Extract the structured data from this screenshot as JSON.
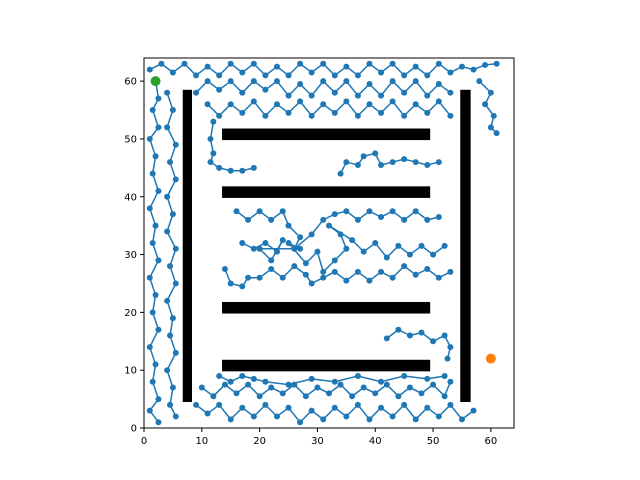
{
  "chart_data": {
    "type": "scatter",
    "title": "",
    "xlabel": "",
    "ylabel": "",
    "xlim": [
      0,
      64
    ],
    "ylim": [
      0,
      64
    ],
    "grid": false,
    "xticks": [
      0,
      10,
      20,
      30,
      40,
      50,
      60
    ],
    "yticks": [
      0,
      10,
      20,
      30,
      40,
      50,
      60
    ],
    "tick_labels_x": [
      "0",
      "10",
      "20",
      "30",
      "40",
      "50",
      "60"
    ],
    "tick_labels_y": [
      "0",
      "10",
      "20",
      "30",
      "40",
      "50",
      "60"
    ],
    "colors": {
      "tree": "#1f77b4",
      "start": "#2ca02c",
      "goal": "#ff7f0e",
      "obstacle": "#000000"
    },
    "obstacles": [
      {
        "x": [
          6.7,
          8.3
        ],
        "y": [
          4.5,
          58.5
        ]
      },
      {
        "x": [
          54.7,
          56.5
        ],
        "y": [
          4.5,
          58.5
        ]
      },
      {
        "x": [
          13.5,
          49.5
        ],
        "y": [
          49.8,
          51.8
        ]
      },
      {
        "x": [
          13.5,
          49.5
        ],
        "y": [
          39.8,
          41.8
        ]
      },
      {
        "x": [
          13.5,
          49.5
        ],
        "y": [
          19.8,
          21.8
        ]
      },
      {
        "x": [
          13.5,
          49.5
        ],
        "y": [
          9.8,
          11.8
        ]
      }
    ],
    "start": {
      "x": 2,
      "y": 60
    },
    "goal": {
      "x": 60,
      "y": 12
    },
    "series": [
      {
        "values": [
          [
            1,
            62
          ],
          [
            3,
            63
          ],
          [
            5,
            61.5
          ],
          [
            7,
            63
          ],
          [
            9,
            61
          ],
          [
            11,
            62.5
          ],
          [
            13,
            61
          ],
          [
            15,
            63
          ],
          [
            17,
            61.5
          ],
          [
            19,
            63
          ],
          [
            21,
            61
          ],
          [
            23,
            62.5
          ],
          [
            25,
            61
          ],
          [
            27,
            63
          ],
          [
            29,
            61.5
          ],
          [
            31,
            63
          ],
          [
            33,
            61
          ],
          [
            35,
            62.5
          ],
          [
            37,
            61
          ],
          [
            39,
            63
          ],
          [
            41,
            61.5
          ],
          [
            43,
            63
          ],
          [
            45,
            61
          ],
          [
            47,
            62.5
          ],
          [
            49,
            61
          ],
          [
            51,
            63
          ],
          [
            53,
            61.5
          ],
          [
            55,
            62.5
          ],
          [
            57,
            62
          ],
          [
            59,
            62.8
          ],
          [
            61,
            63
          ]
        ]
      },
      {
        "values": [
          [
            2,
            60
          ],
          [
            2.5,
            57
          ],
          [
            1.5,
            55
          ],
          [
            2.5,
            52
          ],
          [
            1,
            50
          ],
          [
            2,
            47
          ],
          [
            1.5,
            44
          ],
          [
            2.5,
            41
          ],
          [
            1,
            38
          ],
          [
            2,
            35
          ],
          [
            1.5,
            32
          ],
          [
            2.5,
            29
          ],
          [
            1,
            26
          ],
          [
            2,
            23
          ],
          [
            1.5,
            20
          ],
          [
            2.5,
            17
          ],
          [
            1,
            14
          ],
          [
            2,
            11
          ],
          [
            1.5,
            8
          ],
          [
            2.5,
            5
          ],
          [
            1,
            3
          ],
          [
            2.5,
            1
          ]
        ]
      },
      {
        "values": [
          [
            4,
            58
          ],
          [
            5,
            55
          ],
          [
            4,
            52
          ],
          [
            5.5,
            49
          ],
          [
            4.5,
            46
          ],
          [
            5.5,
            43
          ],
          [
            4,
            40
          ],
          [
            5,
            37
          ],
          [
            4,
            34
          ],
          [
            5.5,
            31
          ],
          [
            4.5,
            28
          ],
          [
            5.5,
            25
          ],
          [
            4,
            22
          ],
          [
            5,
            19
          ],
          [
            4.5,
            16
          ],
          [
            5.5,
            13
          ],
          [
            4,
            10
          ],
          [
            5,
            7
          ],
          [
            4.5,
            4
          ],
          [
            5.5,
            2
          ]
        ]
      },
      {
        "values": [
          [
            9,
            58
          ],
          [
            11,
            60
          ],
          [
            13,
            58.5
          ],
          [
            15,
            60
          ],
          [
            17,
            58
          ],
          [
            19,
            60
          ],
          [
            21,
            58.5
          ],
          [
            23,
            60
          ],
          [
            25,
            57.5
          ],
          [
            27,
            59.5
          ],
          [
            29,
            57.5
          ],
          [
            31,
            60
          ],
          [
            33,
            58
          ],
          [
            35,
            60
          ],
          [
            37,
            57.5
          ],
          [
            39,
            59.5
          ],
          [
            41,
            57.5
          ],
          [
            43,
            60
          ],
          [
            45,
            58
          ],
          [
            47,
            60
          ],
          [
            49,
            57.5
          ],
          [
            51,
            59.5
          ],
          [
            53,
            58
          ]
        ]
      },
      {
        "values": [
          [
            11,
            56
          ],
          [
            13,
            54
          ],
          [
            15,
            56
          ],
          [
            17,
            54.5
          ],
          [
            19,
            56.5
          ],
          [
            21,
            54
          ],
          [
            23,
            56
          ],
          [
            25,
            54.5
          ],
          [
            27,
            56.5
          ],
          [
            29,
            54
          ],
          [
            31,
            56
          ],
          [
            33,
            54.5
          ],
          [
            35,
            56.5
          ],
          [
            37,
            54
          ],
          [
            39,
            56
          ],
          [
            41,
            54.5
          ],
          [
            43,
            56.5
          ],
          [
            45,
            54
          ],
          [
            47,
            56
          ],
          [
            49,
            54.5
          ],
          [
            51,
            56.5
          ],
          [
            53,
            54
          ]
        ]
      },
      {
        "values": [
          [
            12,
            53
          ],
          [
            11.5,
            50
          ],
          [
            12,
            47.5
          ],
          [
            11.5,
            46
          ],
          [
            13,
            45
          ],
          [
            15,
            44.5
          ],
          [
            17,
            44.5
          ],
          [
            19,
            45
          ]
        ]
      },
      {
        "values": [
          [
            58,
            60
          ],
          [
            60,
            58
          ],
          [
            59,
            56
          ],
          [
            60.5,
            54
          ],
          [
            60,
            52
          ],
          [
            61,
            51
          ]
        ]
      },
      {
        "values": [
          [
            34,
            44
          ],
          [
            35,
            46
          ],
          [
            37,
            45.5
          ],
          [
            38,
            47
          ],
          [
            40,
            47.5
          ],
          [
            41,
            45.5
          ],
          [
            43,
            46
          ],
          [
            45,
            46.5
          ],
          [
            47,
            46
          ],
          [
            49,
            45.5
          ],
          [
            51,
            46
          ]
        ]
      },
      {
        "values": [
          [
            16,
            37.5
          ],
          [
            18,
            36
          ],
          [
            20,
            37.5
          ],
          [
            22,
            36
          ],
          [
            24,
            37.5
          ],
          [
            25,
            35
          ],
          [
            27,
            33
          ],
          [
            26,
            31
          ],
          [
            29,
            33.5
          ],
          [
            31,
            36
          ],
          [
            33,
            37
          ],
          [
            35,
            37.5
          ],
          [
            37,
            36
          ],
          [
            39,
            37.5
          ],
          [
            41,
            36.5
          ],
          [
            43,
            37.5
          ],
          [
            45,
            36
          ],
          [
            47,
            37.5
          ],
          [
            49,
            36
          ],
          [
            51,
            36.5
          ]
        ]
      },
      {
        "values": [
          [
            17,
            32
          ],
          [
            19,
            31
          ],
          [
            21,
            32
          ],
          [
            23,
            30.5
          ],
          [
            24,
            32.5
          ],
          [
            22,
            29
          ],
          [
            20,
            31
          ],
          [
            27,
            31
          ],
          [
            25,
            32
          ],
          [
            28,
            28.5
          ],
          [
            30,
            30.5
          ],
          [
            31,
            27
          ],
          [
            33,
            29
          ],
          [
            35,
            31
          ],
          [
            34,
            33.5
          ],
          [
            32,
            35
          ],
          [
            36,
            32.5
          ],
          [
            38,
            30.5
          ],
          [
            40,
            32
          ],
          [
            42,
            29.5
          ],
          [
            44,
            31.5
          ],
          [
            46,
            30
          ],
          [
            48,
            31.5
          ],
          [
            50,
            30
          ],
          [
            52,
            31.5
          ]
        ]
      },
      {
        "values": [
          [
            14,
            27.5
          ],
          [
            15,
            25
          ],
          [
            17,
            24.5
          ],
          [
            18,
            26
          ],
          [
            20,
            26
          ],
          [
            22,
            27.5
          ],
          [
            24,
            26
          ],
          [
            26,
            28
          ],
          [
            28,
            26.5
          ],
          [
            29,
            25
          ],
          [
            31,
            26
          ],
          [
            33,
            27
          ],
          [
            35,
            25.5
          ],
          [
            37,
            27
          ],
          [
            39,
            25.5
          ],
          [
            41,
            27
          ],
          [
            43,
            26
          ],
          [
            45,
            28
          ],
          [
            47,
            26.5
          ],
          [
            49,
            27.5
          ],
          [
            51,
            26
          ],
          [
            53,
            27
          ]
        ]
      },
      {
        "values": [
          [
            42,
            15.5
          ],
          [
            44,
            17
          ],
          [
            46,
            16
          ],
          [
            48,
            16.5
          ],
          [
            50,
            15
          ],
          [
            52,
            16
          ],
          [
            53,
            14
          ],
          [
            52.5,
            12
          ]
        ]
      },
      {
        "values": [
          [
            9,
            4
          ],
          [
            11,
            2.5
          ],
          [
            13,
            4
          ],
          [
            15,
            1.5
          ],
          [
            17,
            3.5
          ],
          [
            19,
            2
          ],
          [
            21,
            4
          ],
          [
            23,
            2
          ],
          [
            25,
            3.5
          ],
          [
            27,
            1
          ],
          [
            29,
            3
          ],
          [
            31,
            1.5
          ],
          [
            33,
            3.5
          ],
          [
            35,
            2
          ],
          [
            37,
            4
          ],
          [
            39,
            1.5
          ],
          [
            41,
            3.5
          ],
          [
            43,
            2
          ],
          [
            45,
            4
          ],
          [
            47,
            1.5
          ],
          [
            49,
            3.5
          ],
          [
            51,
            2
          ],
          [
            53,
            4
          ],
          [
            55,
            1.5
          ],
          [
            57,
            3
          ]
        ]
      },
      {
        "values": [
          [
            10,
            7
          ],
          [
            12,
            5.5
          ],
          [
            14,
            7.5
          ],
          [
            16,
            6
          ],
          [
            18,
            7.5
          ],
          [
            20,
            5.5
          ],
          [
            22,
            7
          ],
          [
            24,
            6
          ],
          [
            26,
            7.5
          ],
          [
            28,
            5.5
          ],
          [
            30,
            7
          ],
          [
            32,
            6
          ],
          [
            34,
            7.5
          ],
          [
            36,
            5.5
          ],
          [
            38,
            7
          ],
          [
            40,
            6
          ],
          [
            42,
            7.5
          ],
          [
            44,
            5.5
          ],
          [
            46,
            7
          ],
          [
            48,
            6
          ],
          [
            50,
            7.5
          ],
          [
            52,
            5.5
          ],
          [
            53,
            8
          ]
        ]
      },
      {
        "values": [
          [
            13,
            9
          ],
          [
            15,
            8
          ],
          [
            17,
            9
          ],
          [
            19,
            8.5
          ],
          [
            21,
            8
          ],
          [
            25,
            7.5
          ],
          [
            29,
            8.5
          ],
          [
            33,
            8
          ],
          [
            37,
            9
          ],
          [
            41,
            8
          ],
          [
            45,
            9
          ],
          [
            49,
            8.5
          ],
          [
            52,
            9
          ]
        ]
      }
    ]
  }
}
